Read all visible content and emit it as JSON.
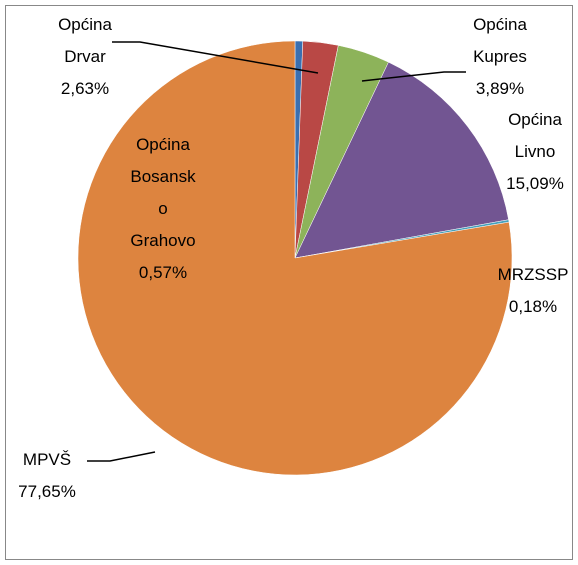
{
  "chart_data": {
    "type": "pie",
    "categories": [
      "Općina Bosansko Grahovo",
      "Općina Drvar",
      "Općina Kupres",
      "Općina Livno",
      "MRZSSP",
      "MPVŠ"
    ],
    "values": [
      0.57,
      2.63,
      3.89,
      15.09,
      0.18,
      77.65
    ],
    "value_labels": [
      "0,57%",
      "2,63%",
      "3,89%",
      "15,09%",
      "0,18%",
      "77,65%"
    ],
    "colors": [
      "#3a6fb0",
      "#b94845",
      "#8db35a",
      "#725592",
      "#45a0bb",
      "#dd843f"
    ]
  }
}
